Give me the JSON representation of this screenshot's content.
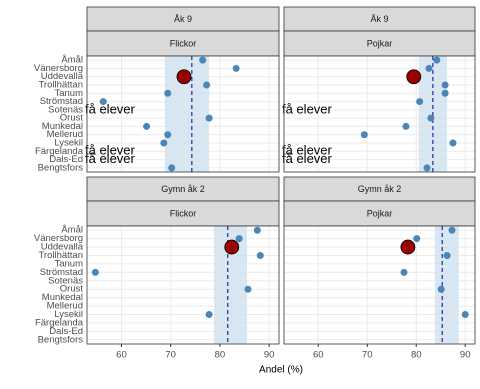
{
  "chart_data": {
    "type": "dot",
    "x_label": "Andel (%)",
    "categories": [
      "Åmål",
      "Vänersborg",
      "Uddevalla",
      "Trollhättan",
      "Tanum",
      "Strömstad",
      "Sotenäs",
      "Orust",
      "Munkedal",
      "Mellerud",
      "Lysekil",
      "Färgelanda",
      "Dals-Ed",
      "Bengtsfors"
    ],
    "xlim": [
      53,
      92
    ],
    "xticks": [
      60,
      70,
      80,
      90
    ],
    "grid": true,
    "color": "#4a86b8",
    "highlight": "Uddevalla",
    "highlight_color": "#990000",
    "band_color": "#cfe1f0",
    "mean_color": "#00008b",
    "panels": [
      {
        "row": "Åk 9",
        "col": "Flickor",
        "values": [
          76.5,
          83.3,
          72.7,
          77.3,
          69.4,
          56.3,
          null,
          77.8,
          65.1,
          69.4,
          68.6,
          null,
          null,
          70.2
        ],
        "value_labels": [
          null,
          null,
          null,
          null,
          null,
          null,
          "få elever",
          null,
          null,
          null,
          null,
          "få elever",
          "få elever",
          null
        ],
        "mean": 74.3,
        "band": [
          68.8,
          77.8
        ]
      },
      {
        "row": "Åk 9",
        "col": "Pojkar",
        "values": [
          84.2,
          82.6,
          79.5,
          85.9,
          85.9,
          80.7,
          null,
          83.0,
          77.9,
          69.4,
          87.5,
          null,
          null,
          82.2
        ],
        "value_labels": [
          null,
          null,
          null,
          null,
          null,
          null,
          "få elever",
          null,
          null,
          null,
          null,
          "få elever",
          "få elever",
          null
        ],
        "mean": 83.4,
        "band": [
          80.5,
          86.3
        ]
      },
      {
        "row": "Gymn åk 2",
        "col": "Flickor",
        "values": [
          87.6,
          83.9,
          82.4,
          88.2,
          null,
          54.7,
          null,
          85.7,
          null,
          null,
          77.8,
          null,
          null,
          null
        ],
        "mean": 81.6,
        "band": [
          78.8,
          85.5
        ]
      },
      {
        "row": "Gymn åk 2",
        "col": "Pojkar",
        "values": [
          87.3,
          80.1,
          78.3,
          86.3,
          null,
          77.5,
          null,
          85.1,
          null,
          null,
          90.0,
          null,
          null,
          null
        ],
        "mean": 85.3,
        "band": [
          83.8,
          88.7
        ]
      }
    ]
  }
}
